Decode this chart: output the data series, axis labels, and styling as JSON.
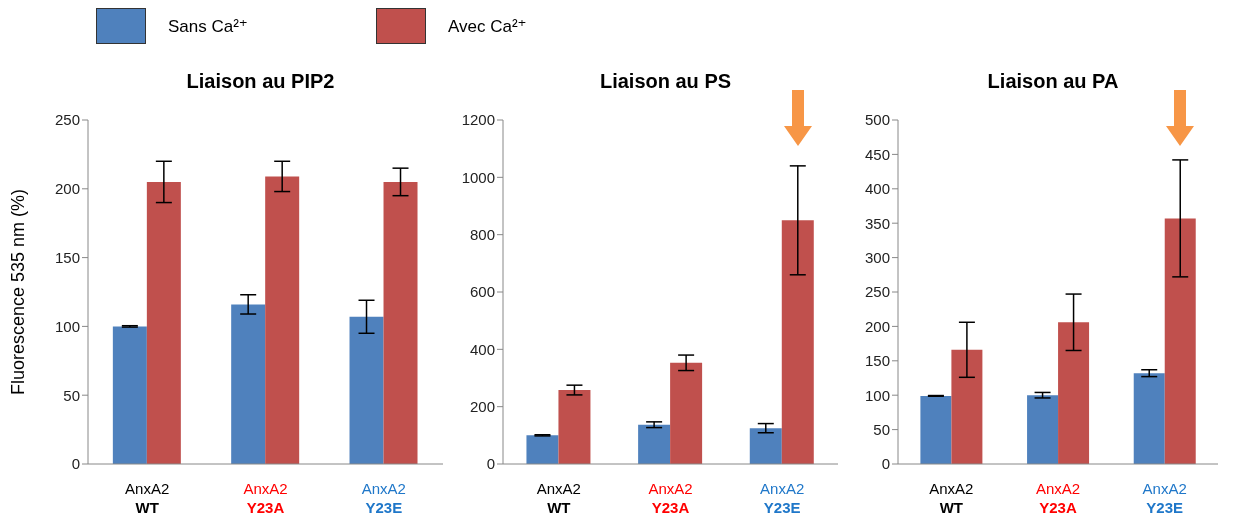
{
  "chart_data": [
    {
      "type": "bar",
      "title": "Liaison au PIP2",
      "ylabel": "Fluorescence 535 nm (%)",
      "categories": [
        "AnxA2 WT",
        "AnxA2 Y23A",
        "AnxA2 Y23E"
      ],
      "ylim": [
        0,
        250
      ],
      "yticks": [
        0,
        50,
        100,
        150,
        200,
        250
      ],
      "legend": "top",
      "series": [
        {
          "name": "Sans Ca²⁺",
          "color": "#4f81bd",
          "values": [
            100,
            116,
            107
          ],
          "errors": [
            0.5,
            7,
            12
          ]
        },
        {
          "name": "Avec Ca²⁺",
          "color": "#c0504d",
          "values": [
            205,
            209,
            205
          ],
          "errors": [
            15,
            11,
            10
          ]
        }
      ]
    },
    {
      "type": "bar",
      "title": "Liaison au PS",
      "categories": [
        "AnxA2 WT",
        "AnxA2 Y23A",
        "AnxA2 Y23E"
      ],
      "ylim": [
        0,
        1200
      ],
      "yticks": [
        0,
        200,
        400,
        600,
        800,
        1000,
        1200
      ],
      "series": [
        {
          "color": "#4f81bd",
          "values": [
            100,
            137,
            125
          ],
          "errors": [
            2,
            10,
            16
          ]
        },
        {
          "color": "#c0504d",
          "values": [
            258,
            353,
            850
          ],
          "errors": [
            17,
            27,
            190
          ]
        }
      ]
    },
    {
      "type": "bar",
      "title": "Liaison au PA",
      "categories": [
        "AnxA2 WT",
        "AnxA2 Y23A",
        "AnxA2 Y23E"
      ],
      "ylim": [
        0,
        500
      ],
      "yticks": [
        0,
        50,
        100,
        150,
        200,
        250,
        300,
        350,
        400,
        450,
        500
      ],
      "series": [
        {
          "color": "#4f81bd",
          "values": [
            99,
            100,
            132
          ],
          "errors": [
            0.5,
            4,
            5
          ]
        },
        {
          "color": "#c0504d",
          "values": [
            166,
            206,
            357
          ],
          "errors": [
            40,
            41,
            85
          ]
        }
      ]
    }
  ]
}
